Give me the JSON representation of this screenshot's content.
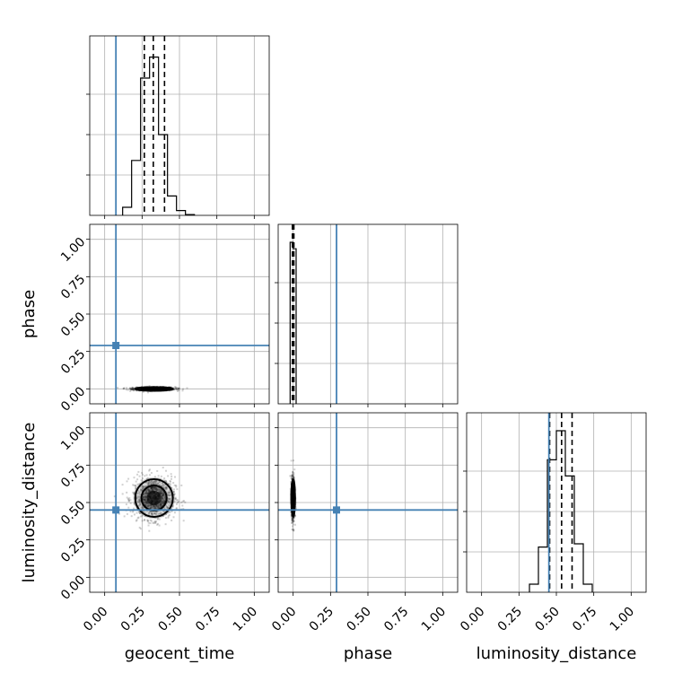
{
  "chart_data": {
    "type": "corner",
    "parameters": [
      "geocent_time",
      "phase",
      "luminosity_distance"
    ],
    "xlabels": [
      "geocent_time",
      "phase",
      "luminosity_distance"
    ],
    "ylabels": [
      "",
      "phase",
      "luminosity_distance"
    ],
    "tick_values": [
      0.0,
      0.25,
      0.5,
      0.75,
      1.0
    ],
    "tick_labels": [
      "0.00",
      "0.25",
      "0.50",
      "0.75",
      "1.00"
    ],
    "range": [
      -0.1,
      1.1
    ],
    "grid": true,
    "truths": {
      "geocent_time": 0.075,
      "phase": 0.29,
      "luminosity_distance": 0.45
    },
    "colors": {
      "truth": "#4682b4",
      "hist": "#000000"
    },
    "marginals": [
      {
        "param": "geocent_time",
        "edges": [
          0.12,
          0.18,
          0.24,
          0.3,
          0.36,
          0.42,
          0.48,
          0.54,
          0.6
        ],
        "counts": [
          0.05,
          0.34,
          0.85,
          0.98,
          0.5,
          0.12,
          0.03,
          0.005
        ],
        "quantiles": [
          0.265,
          0.325,
          0.4
        ]
      },
      {
        "param": "phase",
        "edges": [
          -0.02,
          0.0,
          0.02
        ],
        "counts": [
          1.0,
          0.96
        ],
        "quantiles": [
          -0.005,
          0.0,
          0.005
        ]
      },
      {
        "param": "luminosity_distance",
        "edges": [
          0.32,
          0.38,
          0.44,
          0.5,
          0.56,
          0.62,
          0.68,
          0.74
        ],
        "counts": [
          0.05,
          0.28,
          0.82,
          1.0,
          0.72,
          0.3,
          0.05
        ],
        "quantiles": [
          0.455,
          0.535,
          0.605
        ]
      }
    ],
    "joint": [
      {
        "x": "geocent_time",
        "y": "phase",
        "center": [
          0.33,
          0.0
        ],
        "spread": [
          0.07,
          0.006
        ]
      },
      {
        "x": "geocent_time",
        "y": "luminosity_distance",
        "center": [
          0.33,
          0.53
        ],
        "spread": [
          0.07,
          0.07
        ]
      },
      {
        "x": "phase",
        "y": "luminosity_distance",
        "center": [
          0.0,
          0.53
        ],
        "spread": [
          0.006,
          0.07
        ]
      }
    ]
  }
}
